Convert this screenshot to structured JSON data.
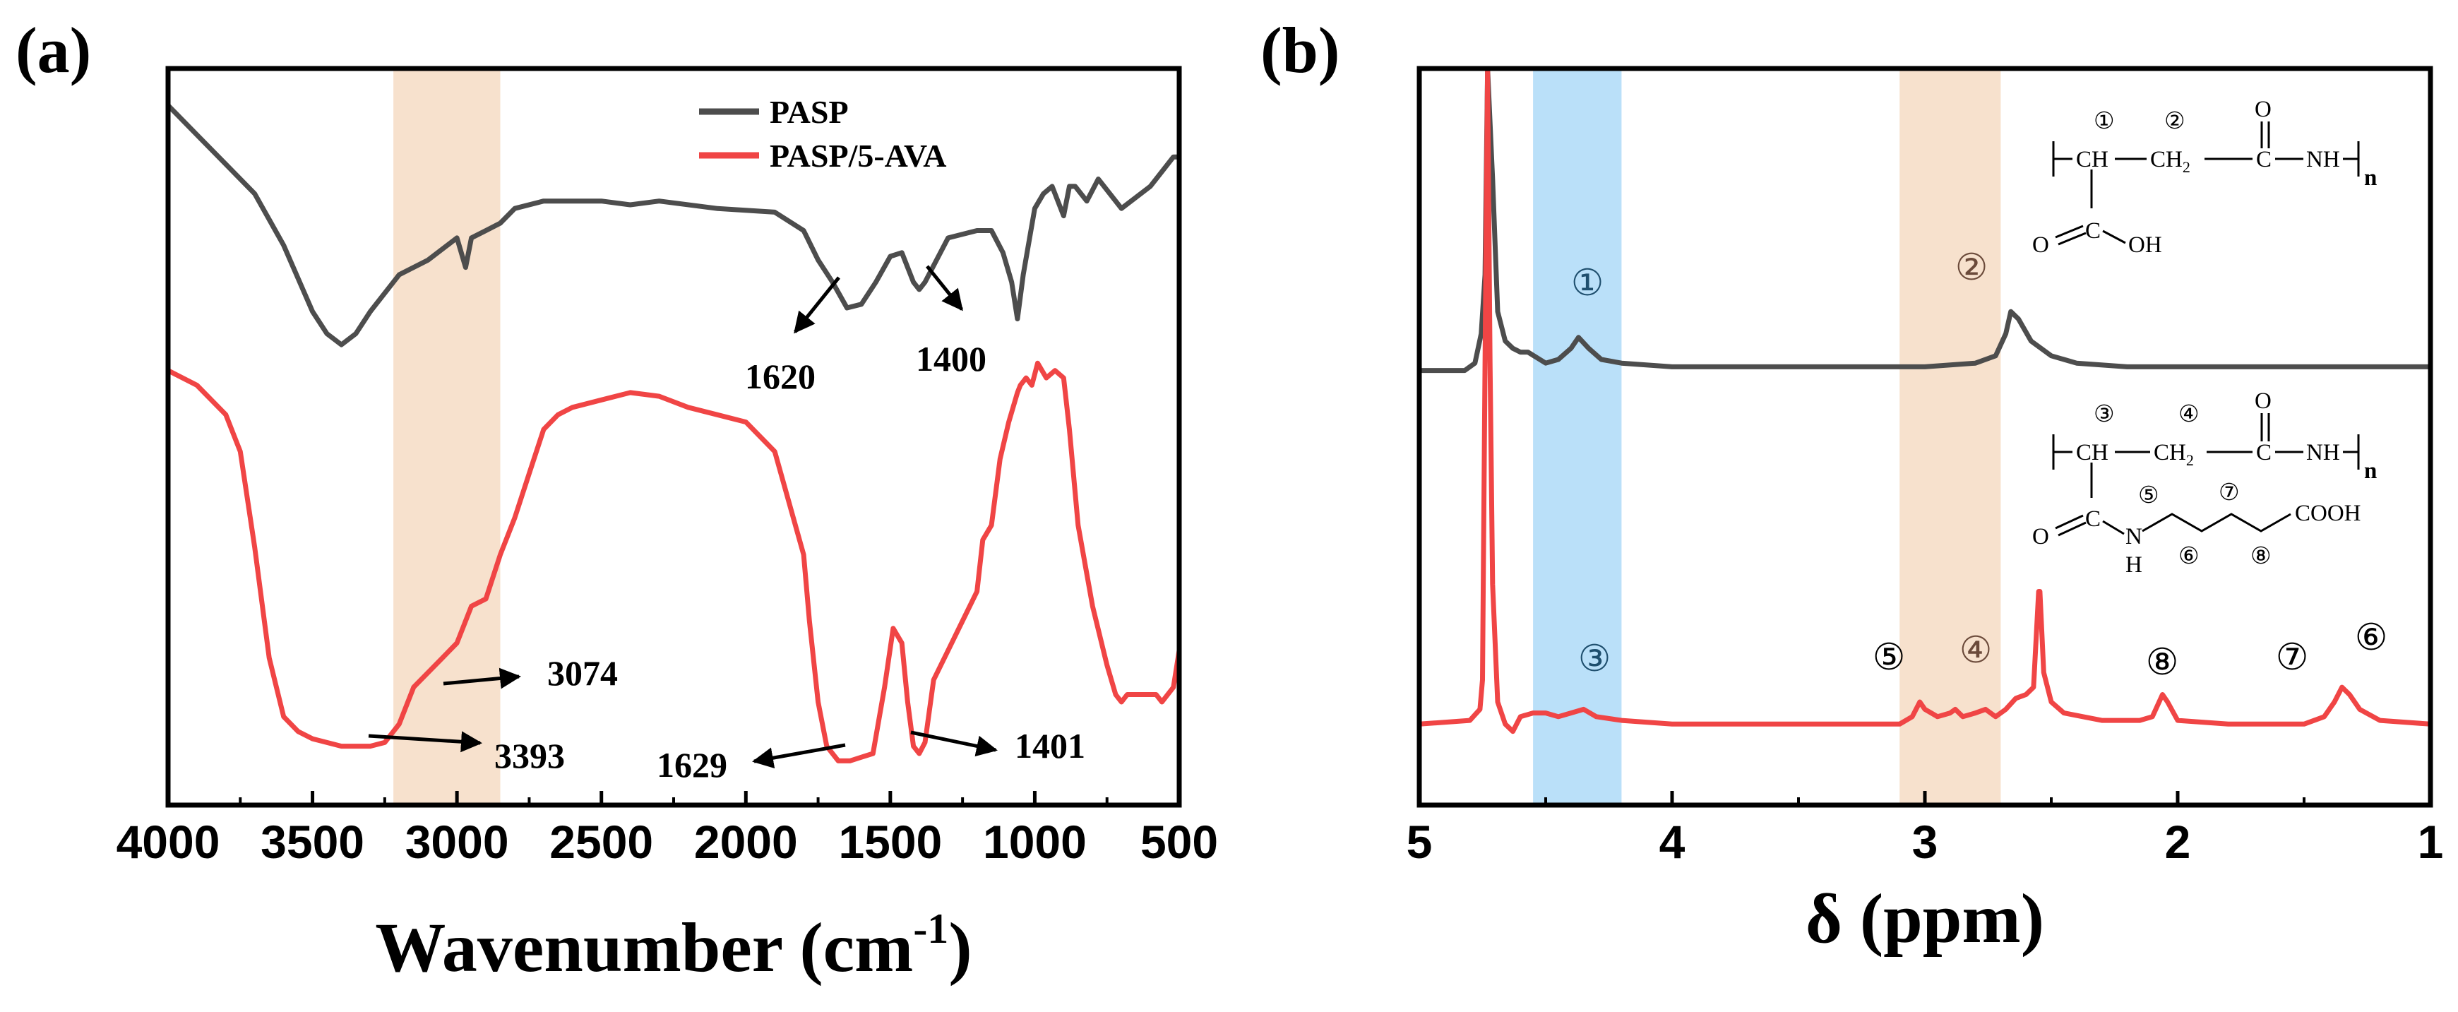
{
  "panel_labels": {
    "a": "(a)",
    "b": "(b)"
  },
  "colors": {
    "pasp": "#4d4d4d",
    "pasp_5ava": "#f04545",
    "highlight_orange": "#f6dcc4",
    "highlight_blue": "#a9d8f7",
    "frame": "#000000"
  },
  "chart_data": [
    {
      "type": "line",
      "title": "",
      "xlabel": "Wavenumber (cm",
      "xlabel_sup": "-1",
      "xlabel_close": ")",
      "ylabel": "",
      "xlim": [
        4000,
        500
      ],
      "ylim": [
        0,
        100
      ],
      "x_ticks": [
        "4000",
        "3500",
        "3000",
        "2500",
        "2000",
        "1500",
        "1000",
        "500"
      ],
      "grid": false,
      "legend_position": "top-center",
      "highlight_band": [
        2850,
        3220
      ],
      "series": [
        {
          "name": "PASP",
          "points": [
            [
              4000,
              95
            ],
            [
              3900,
              91
            ],
            [
              3800,
              87
            ],
            [
              3700,
              83
            ],
            [
              3600,
              76
            ],
            [
              3500,
              67
            ],
            [
              3450,
              64
            ],
            [
              3400,
              62.5
            ],
            [
              3350,
              64
            ],
            [
              3300,
              67
            ],
            [
              3200,
              72
            ],
            [
              3100,
              74
            ],
            [
              3000,
              77
            ],
            [
              2970,
              73
            ],
            [
              2950,
              77
            ],
            [
              2900,
              78
            ],
            [
              2850,
              79
            ],
            [
              2800,
              81
            ],
            [
              2700,
              82
            ],
            [
              2500,
              82
            ],
            [
              2400,
              81.5
            ],
            [
              2300,
              82
            ],
            [
              2100,
              81
            ],
            [
              1900,
              80.5
            ],
            [
              1800,
              78
            ],
            [
              1750,
              74
            ],
            [
              1700,
              71
            ],
            [
              1650,
              67.5
            ],
            [
              1600,
              68
            ],
            [
              1550,
              71
            ],
            [
              1500,
              74.5
            ],
            [
              1460,
              75
            ],
            [
              1420,
              71
            ],
            [
              1400,
              70
            ],
            [
              1380,
              71
            ],
            [
              1340,
              74
            ],
            [
              1300,
              77
            ],
            [
              1200,
              78
            ],
            [
              1150,
              78
            ],
            [
              1110,
              75
            ],
            [
              1080,
              71
            ],
            [
              1060,
              66
            ],
            [
              1040,
              72
            ],
            [
              1000,
              81
            ],
            [
              970,
              83
            ],
            [
              940,
              84
            ],
            [
              900,
              80
            ],
            [
              880,
              84
            ],
            [
              860,
              84
            ],
            [
              820,
              82
            ],
            [
              780,
              85
            ],
            [
              700,
              81
            ],
            [
              600,
              84
            ],
            [
              520,
              88
            ],
            [
              500,
              88
            ]
          ]
        },
        {
          "name": "PASP/5-AVA",
          "points": [
            [
              4000,
              59
            ],
            [
              3900,
              57
            ],
            [
              3800,
              53
            ],
            [
              3750,
              48
            ],
            [
              3700,
              35
            ],
            [
              3650,
              20
            ],
            [
              3600,
              12
            ],
            [
              3550,
              10
            ],
            [
              3500,
              9
            ],
            [
              3400,
              8
            ],
            [
              3300,
              8
            ],
            [
              3250,
              8.5
            ],
            [
              3200,
              11
            ],
            [
              3150,
              16
            ],
            [
              3100,
              18
            ],
            [
              3050,
              20
            ],
            [
              3000,
              22
            ],
            [
              2950,
              27
            ],
            [
              2900,
              28
            ],
            [
              2850,
              34
            ],
            [
              2800,
              39
            ],
            [
              2750,
              45
            ],
            [
              2700,
              51
            ],
            [
              2650,
              53
            ],
            [
              2600,
              54
            ],
            [
              2500,
              55
            ],
            [
              2400,
              56
            ],
            [
              2300,
              55.5
            ],
            [
              2200,
              54
            ],
            [
              2100,
              53
            ],
            [
              2000,
              52
            ],
            [
              1900,
              48
            ],
            [
              1800,
              34
            ],
            [
              1780,
              25
            ],
            [
              1750,
              14
            ],
            [
              1720,
              8
            ],
            [
              1680,
              6
            ],
            [
              1640,
              6
            ],
            [
              1600,
              6.5
            ],
            [
              1560,
              7
            ],
            [
              1520,
              16
            ],
            [
              1490,
              24
            ],
            [
              1460,
              22
            ],
            [
              1440,
              14
            ],
            [
              1420,
              8
            ],
            [
              1400,
              7
            ],
            [
              1380,
              8.5
            ],
            [
              1350,
              17
            ],
            [
              1300,
              21
            ],
            [
              1250,
              25
            ],
            [
              1200,
              29
            ],
            [
              1180,
              36
            ],
            [
              1150,
              38
            ],
            [
              1120,
              47
            ],
            [
              1090,
              52
            ],
            [
              1060,
              56
            ],
            [
              1050,
              57
            ],
            [
              1030,
              58
            ],
            [
              1010,
              57
            ],
            [
              990,
              60
            ],
            [
              960,
              58
            ],
            [
              930,
              59
            ],
            [
              900,
              58
            ],
            [
              880,
              51
            ],
            [
              850,
              38
            ],
            [
              800,
              27
            ],
            [
              750,
              19
            ],
            [
              720,
              15
            ],
            [
              700,
              14
            ],
            [
              680,
              15
            ],
            [
              640,
              15
            ],
            [
              580,
              15
            ],
            [
              560,
              14
            ],
            [
              520,
              16
            ],
            [
              500,
              21
            ]
          ]
        }
      ],
      "annotations": [
        {
          "text": "1620"
        },
        {
          "text": "1400"
        },
        {
          "text": "3074"
        },
        {
          "text": "3393"
        },
        {
          "text": "1629"
        },
        {
          "text": "1401"
        }
      ]
    },
    {
      "type": "line",
      "title": "",
      "xlabel": "δ (ppm)",
      "ylabel": "",
      "xlim": [
        5,
        1
      ],
      "ylim": [
        0,
        100
      ],
      "x_ticks": [
        "5",
        "4",
        "3",
        "2",
        "1"
      ],
      "grid": false,
      "highlight_bands": [
        {
          "range": [
            4.2,
            4.55
          ],
          "color": "blue"
        },
        {
          "range": [
            2.7,
            3.1
          ],
          "color": "orange"
        }
      ],
      "series": [
        {
          "name": "PASP",
          "points": [
            [
              5.0,
              59
            ],
            [
              4.82,
              59
            ],
            [
              4.78,
              60
            ],
            [
              4.755,
              64
            ],
            [
              4.74,
              72
            ],
            [
              4.73,
              100
            ],
            [
              4.71,
              85
            ],
            [
              4.69,
              67
            ],
            [
              4.66,
              63
            ],
            [
              4.63,
              62
            ],
            [
              4.6,
              61.5
            ],
            [
              4.57,
              61.5
            ],
            [
              4.5,
              60
            ],
            [
              4.45,
              60.5
            ],
            [
              4.4,
              62
            ],
            [
              4.37,
              63.5
            ],
            [
              4.33,
              62
            ],
            [
              4.28,
              60.5
            ],
            [
              4.2,
              60
            ],
            [
              4.0,
              59.5
            ],
            [
              3.5,
              59.5
            ],
            [
              3.0,
              59.5
            ],
            [
              2.8,
              60
            ],
            [
              2.72,
              61
            ],
            [
              2.68,
              64
            ],
            [
              2.66,
              67
            ],
            [
              2.63,
              66
            ],
            [
              2.58,
              63
            ],
            [
              2.5,
              61
            ],
            [
              2.4,
              60
            ],
            [
              2.2,
              59.5
            ],
            [
              1.5,
              59.5
            ],
            [
              1.0,
              59.5
            ]
          ]
        },
        {
          "name": "",
          "points": [
            [
              5.0,
              11
            ],
            [
              4.8,
              11.5
            ],
            [
              4.76,
              13
            ],
            [
              4.75,
              17
            ],
            [
              4.74,
              60
            ],
            [
              4.73,
              100
            ],
            [
              4.72,
              60
            ],
            [
              4.71,
              30
            ],
            [
              4.69,
              14
            ],
            [
              4.66,
              11
            ],
            [
              4.63,
              10
            ],
            [
              4.6,
              12
            ],
            [
              4.55,
              12.5
            ],
            [
              4.5,
              12.5
            ],
            [
              4.45,
              12
            ],
            [
              4.4,
              12.5
            ],
            [
              4.35,
              13
            ],
            [
              4.3,
              12
            ],
            [
              4.2,
              11.5
            ],
            [
              4.0,
              11
            ],
            [
              3.5,
              11
            ],
            [
              3.1,
              11
            ],
            [
              3.05,
              12
            ],
            [
              3.02,
              14
            ],
            [
              3.0,
              13
            ],
            [
              2.95,
              12
            ],
            [
              2.9,
              12.5
            ],
            [
              2.88,
              13
            ],
            [
              2.85,
              12
            ],
            [
              2.8,
              12.5
            ],
            [
              2.76,
              13
            ],
            [
              2.72,
              12
            ],
            [
              2.68,
              13
            ],
            [
              2.64,
              14.5
            ],
            [
              2.6,
              15
            ],
            [
              2.57,
              16
            ],
            [
              2.55,
              29
            ],
            [
              2.545,
              29
            ],
            [
              2.53,
              18
            ],
            [
              2.5,
              14
            ],
            [
              2.45,
              12.5
            ],
            [
              2.3,
              11.5
            ],
            [
              2.15,
              11.5
            ],
            [
              2.1,
              12
            ],
            [
              2.06,
              15
            ],
            [
              2.04,
              14
            ],
            [
              2.0,
              11.5
            ],
            [
              1.8,
              11
            ],
            [
              1.5,
              11
            ],
            [
              1.42,
              12
            ],
            [
              1.38,
              14
            ],
            [
              1.35,
              16
            ],
            [
              1.32,
              15
            ],
            [
              1.28,
              13
            ],
            [
              1.2,
              11.5
            ],
            [
              1.0,
              11
            ]
          ]
        }
      ],
      "peak_labels": [
        "①",
        "②",
        "③",
        "④",
        "⑤",
        "⑥",
        "⑦",
        "⑧"
      ]
    }
  ],
  "structure_top": {
    "circle_1": "①",
    "circle_2": "②",
    "ch": "CH",
    "ch2": "CH",
    "ch2_sub": "2",
    "c_carbonyl": "C",
    "o_top": "O",
    "nh": "NH",
    "n_sub": "n",
    "o_left": "O",
    "c_acid": "C",
    "oh": "OH"
  },
  "structure_bottom": {
    "circle_3": "③",
    "circle_4": "④",
    "circle_5": "⑤",
    "circle_6": "⑥",
    "circle_7": "⑦",
    "circle_8": "⑧",
    "ch": "CH",
    "ch2": "CH",
    "ch2_sub": "2",
    "c_carbonyl": "C",
    "o_top": "O",
    "nh": "NH",
    "n_sub": "n",
    "o_left": "O",
    "c_amide": "C",
    "n": "N",
    "h": "H",
    "cooh": "COOH"
  }
}
